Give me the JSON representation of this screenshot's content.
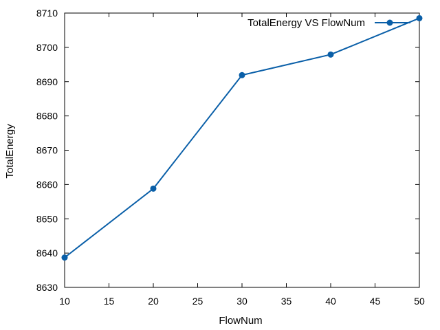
{
  "chart_data": {
    "type": "line",
    "title": "",
    "xlabel": "FlowNum",
    "ylabel": "TotalEnergy",
    "xlim": [
      10,
      50
    ],
    "ylim": [
      8630,
      8710
    ],
    "x_ticks": [
      10,
      15,
      20,
      25,
      30,
      35,
      40,
      45,
      50
    ],
    "y_ticks": [
      8630,
      8640,
      8650,
      8660,
      8670,
      8680,
      8690,
      8700,
      8710
    ],
    "grid": false,
    "legend_position": "top-right",
    "series": [
      {
        "name": "TotalEnergy VS FlowNum",
        "color": "#0a5fa8",
        "marker": "circle",
        "x": [
          10,
          20,
          30,
          40,
          50
        ],
        "y": [
          8638.7,
          8658.8,
          8691.9,
          8697.9,
          8708.5
        ]
      }
    ]
  }
}
